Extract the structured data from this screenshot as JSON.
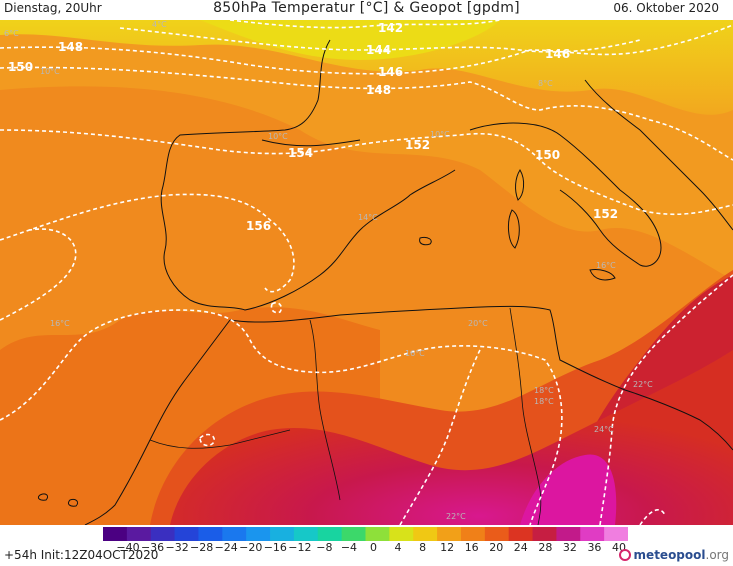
{
  "header": {
    "valid_time": "Dienstag, 20Uhr",
    "title": "850hPa Temperatur [°C] & Geopot [gpdm]",
    "date": "06. Oktober 2020"
  },
  "footer": {
    "run_info": "+54h Init:12Z04OCT2020",
    "logo_main": "meteopool",
    "logo_tld": ".org"
  },
  "colors": {
    "background": "#ffffff",
    "contour": "#ffffff",
    "coast": "#111111",
    "logo_ring": "#d6266b"
  },
  "scale": {
    "labels": [
      "−40",
      "−36",
      "−32",
      "−28",
      "−24",
      "−20",
      "−16",
      "−12",
      "−8",
      "−4",
      "0",
      "4",
      "8",
      "12",
      "16",
      "20",
      "24",
      "28",
      "32",
      "36",
      "40"
    ],
    "colors": [
      "#4b0082",
      "#5a1aa0",
      "#3a2fc0",
      "#2444d8",
      "#1a5de8",
      "#1a78ee",
      "#1a95ee",
      "#18b0e0",
      "#16c8c8",
      "#18d4a0",
      "#3cd86a",
      "#8ee03a",
      "#d8e21a",
      "#f0c814",
      "#f2a018",
      "#f08018",
      "#ea5c1a",
      "#dc3422",
      "#c61e42",
      "#c21a8a",
      "#e03cc4",
      "#f07ee0"
    ]
  },
  "contours": [
    {
      "label": "142"
    },
    {
      "label": "144"
    },
    {
      "label": "146"
    },
    {
      "label": "146"
    },
    {
      "label": "148"
    },
    {
      "label": "148"
    },
    {
      "label": "150"
    },
    {
      "label": "150"
    },
    {
      "label": "152"
    },
    {
      "label": "152"
    },
    {
      "label": "154"
    },
    {
      "label": "156"
    }
  ],
  "temp_labels": [
    {
      "text": "4°C"
    },
    {
      "text": "6°C"
    },
    {
      "text": "8°C"
    },
    {
      "text": "10°C"
    },
    {
      "text": "10°C"
    },
    {
      "text": "10°C"
    },
    {
      "text": "14°C"
    },
    {
      "text": "16°C"
    },
    {
      "text": "16°C"
    },
    {
      "text": "16°C"
    },
    {
      "text": "18°C"
    },
    {
      "text": "18°C"
    },
    {
      "text": "20°C"
    },
    {
      "text": "22°C"
    },
    {
      "text": "22°C"
    },
    {
      "text": "24°C"
    }
  ]
}
